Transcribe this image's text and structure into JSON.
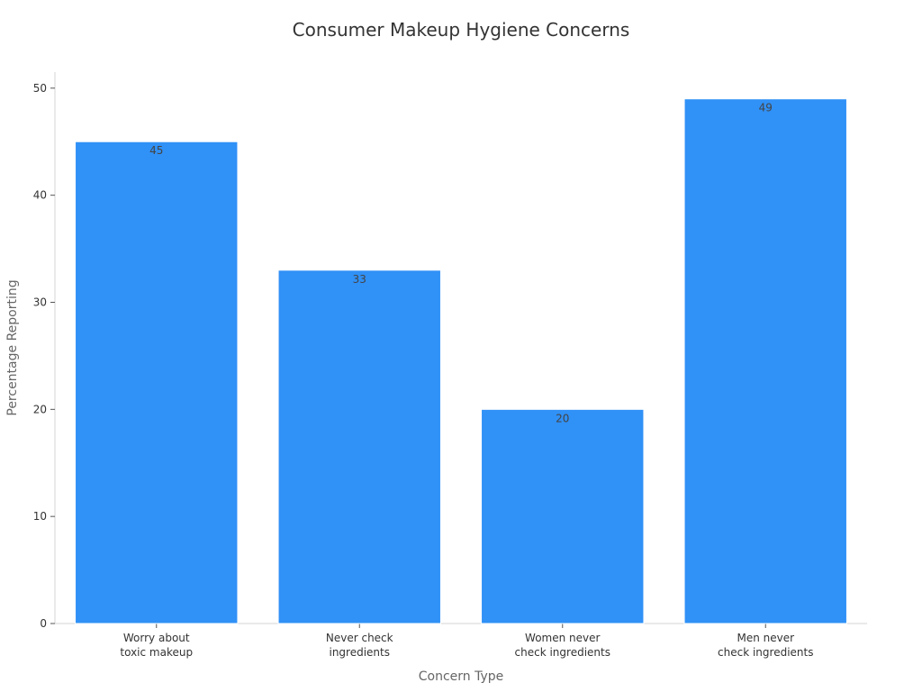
{
  "chart_data": {
    "type": "bar",
    "title": "Consumer Makeup Hygiene Concerns",
    "xlabel": "Concern Type",
    "ylabel": "Percentage Reporting",
    "categories": [
      [
        "Worry about",
        "toxic makeup"
      ],
      [
        "Never check",
        "ingredients"
      ],
      [
        "Women never",
        "check ingredients"
      ],
      [
        "Men never",
        "check ingredients"
      ]
    ],
    "values": [
      45,
      33,
      20,
      49
    ],
    "ylim": [
      0,
      51.5
    ],
    "yticks": [
      0,
      10,
      20,
      30,
      40,
      50
    ],
    "grid": false,
    "legend": "none",
    "bar_color": "#3091f7",
    "bar_edge_color": "#ffffff"
  }
}
